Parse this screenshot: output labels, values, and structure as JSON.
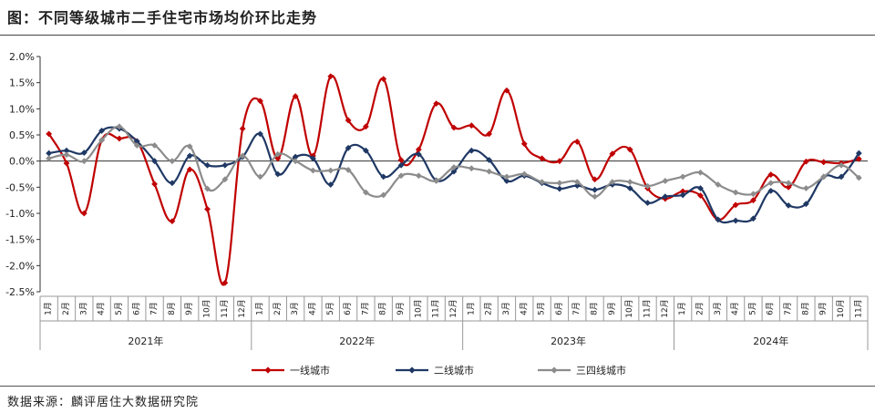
{
  "title": "图：不同等级城市二手住宅市场均价环比走势",
  "source": "数据来源：麟评居住大数据研究院",
  "chart_data": {
    "type": "line",
    "title": "图：不同等级城市二手住宅市场均价环比走势",
    "xlabel": "",
    "ylabel": "",
    "ylim": [
      -2.5,
      2.0
    ],
    "yticks": [
      "2.0%",
      "1.5%",
      "1.0%",
      "0.5%",
      "0.0%",
      "-0.5%",
      "-1.0%",
      "-1.5%",
      "-2.0%",
      "-2.5%"
    ],
    "ytick_values": [
      2.0,
      1.5,
      1.0,
      0.5,
      0.0,
      -0.5,
      -1.0,
      -1.5,
      -2.0,
      -2.5
    ],
    "categories": [
      "1月",
      "2月",
      "3月",
      "4月",
      "5月",
      "6月",
      "7月",
      "8月",
      "9月",
      "10月",
      "11月",
      "12月",
      "1月",
      "2月",
      "3月",
      "4月",
      "5月",
      "6月",
      "7月",
      "8月",
      "9月",
      "10月",
      "11月",
      "12月",
      "1月",
      "2月",
      "3月",
      "4月",
      "5月",
      "6月",
      "7月",
      "8月",
      "9月",
      "10月",
      "11月",
      "12月",
      "1月",
      "2月",
      "3月",
      "4月",
      "5月",
      "6月",
      "7月",
      "8月",
      "9月",
      "10月",
      "11月"
    ],
    "year_groups": [
      {
        "label": "2021年",
        "count": 12
      },
      {
        "label": "2022年",
        "count": 12
      },
      {
        "label": "2023年",
        "count": 12
      },
      {
        "label": "2024年",
        "count": 11
      }
    ],
    "grid": false,
    "legend_position": "bottom",
    "series": [
      {
        "name": "一线城市",
        "color": "#c00000",
        "marker": "diamond",
        "values": [
          0.52,
          -0.04,
          -1.0,
          0.4,
          0.43,
          0.38,
          -0.44,
          -1.15,
          -0.16,
          -0.92,
          -2.33,
          0.62,
          1.15,
          0.05,
          1.24,
          0.1,
          1.62,
          0.78,
          0.66,
          1.57,
          0.02,
          0.22,
          1.1,
          0.64,
          0.68,
          0.52,
          1.35,
          0.33,
          0.05,
          0.0,
          0.37,
          -0.35,
          0.14,
          0.22,
          -0.52,
          -0.72,
          -0.58,
          -0.66,
          -1.12,
          -0.84,
          -0.75,
          -0.26,
          -0.5,
          -0.01,
          -0.02,
          -0.04,
          0.04
        ]
      },
      {
        "name": "二线城市",
        "color": "#1f3864",
        "marker": "diamond",
        "values": [
          0.15,
          0.2,
          0.16,
          0.58,
          0.62,
          0.38,
          0.0,
          -0.42,
          0.1,
          -0.08,
          -0.08,
          0.08,
          0.52,
          -0.25,
          0.08,
          0.05,
          -0.45,
          0.25,
          0.2,
          -0.3,
          -0.08,
          0.13,
          -0.37,
          -0.2,
          0.2,
          0.02,
          -0.38,
          -0.28,
          -0.42,
          -0.53,
          -0.47,
          -0.55,
          -0.45,
          -0.52,
          -0.8,
          -0.68,
          -0.65,
          -0.52,
          -1.12,
          -1.14,
          -1.1,
          -0.57,
          -0.85,
          -0.82,
          -0.3,
          -0.3,
          0.15
        ]
      },
      {
        "name": "三四线城市",
        "color": "#8c8c8c",
        "marker": "diamond",
        "values": [
          0.05,
          0.12,
          0.0,
          0.4,
          0.66,
          0.3,
          0.3,
          0.0,
          0.28,
          -0.53,
          -0.35,
          0.1,
          -0.3,
          0.13,
          0.0,
          -0.18,
          -0.18,
          -0.17,
          -0.6,
          -0.65,
          -0.28,
          -0.28,
          -0.38,
          -0.12,
          -0.14,
          -0.2,
          -0.3,
          -0.25,
          -0.4,
          -0.42,
          -0.4,
          -0.68,
          -0.4,
          -0.4,
          -0.48,
          -0.38,
          -0.3,
          -0.22,
          -0.45,
          -0.6,
          -0.63,
          -0.42,
          -0.42,
          -0.52,
          -0.3,
          -0.08,
          -0.32
        ]
      }
    ]
  }
}
